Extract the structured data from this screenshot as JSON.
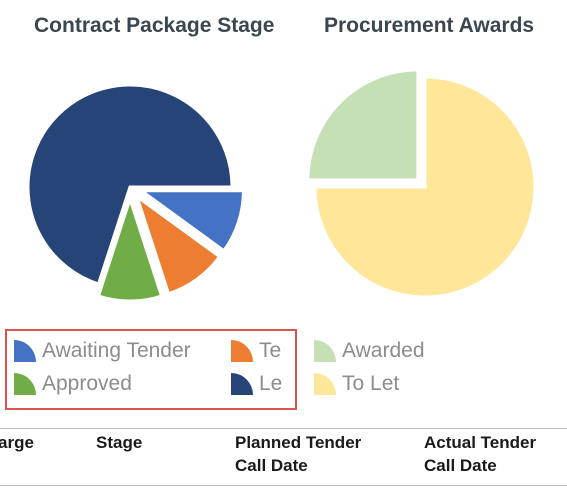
{
  "charts": {
    "left_title": "Contract Package Stage",
    "right_title": "Procurement Awards"
  },
  "legend": {
    "left": [
      {
        "label": "Awaiting Tender",
        "color": "#4472c4"
      },
      {
        "label": "Te",
        "color": "#ed7d31"
      },
      {
        "label": "Approved",
        "color": "#70ad47"
      },
      {
        "label": "Le",
        "color": "#264478"
      }
    ],
    "right": [
      {
        "label": "Awarded",
        "color": "#c5e0b4"
      },
      {
        "label": "To Let",
        "color": "#ffe699"
      }
    ]
  },
  "table": {
    "headers": [
      "arge",
      "Stage",
      "Planned Tender",
      "Call Date",
      "Actual Tender",
      "Call Date"
    ]
  },
  "chart_data": [
    {
      "type": "pie",
      "title": "Contract Package Stage",
      "slices": [
        {
          "color": "#264478",
          "value": 70
        },
        {
          "color": "#4472c4",
          "value": 10
        },
        {
          "color": "#ed7d31",
          "value": 10
        },
        {
          "color": "#70ad47",
          "value": 10
        }
      ],
      "exploded": [
        "#4472c4",
        "#ed7d31",
        "#70ad47"
      ]
    },
    {
      "type": "pie",
      "title": "Procurement Awards",
      "slices": [
        {
          "label": "Awarded",
          "color": "#c5e0b4",
          "value": 25
        },
        {
          "label": "To Let",
          "color": "#ffe699",
          "value": 75
        }
      ],
      "exploded": [
        "Awarded"
      ]
    }
  ]
}
